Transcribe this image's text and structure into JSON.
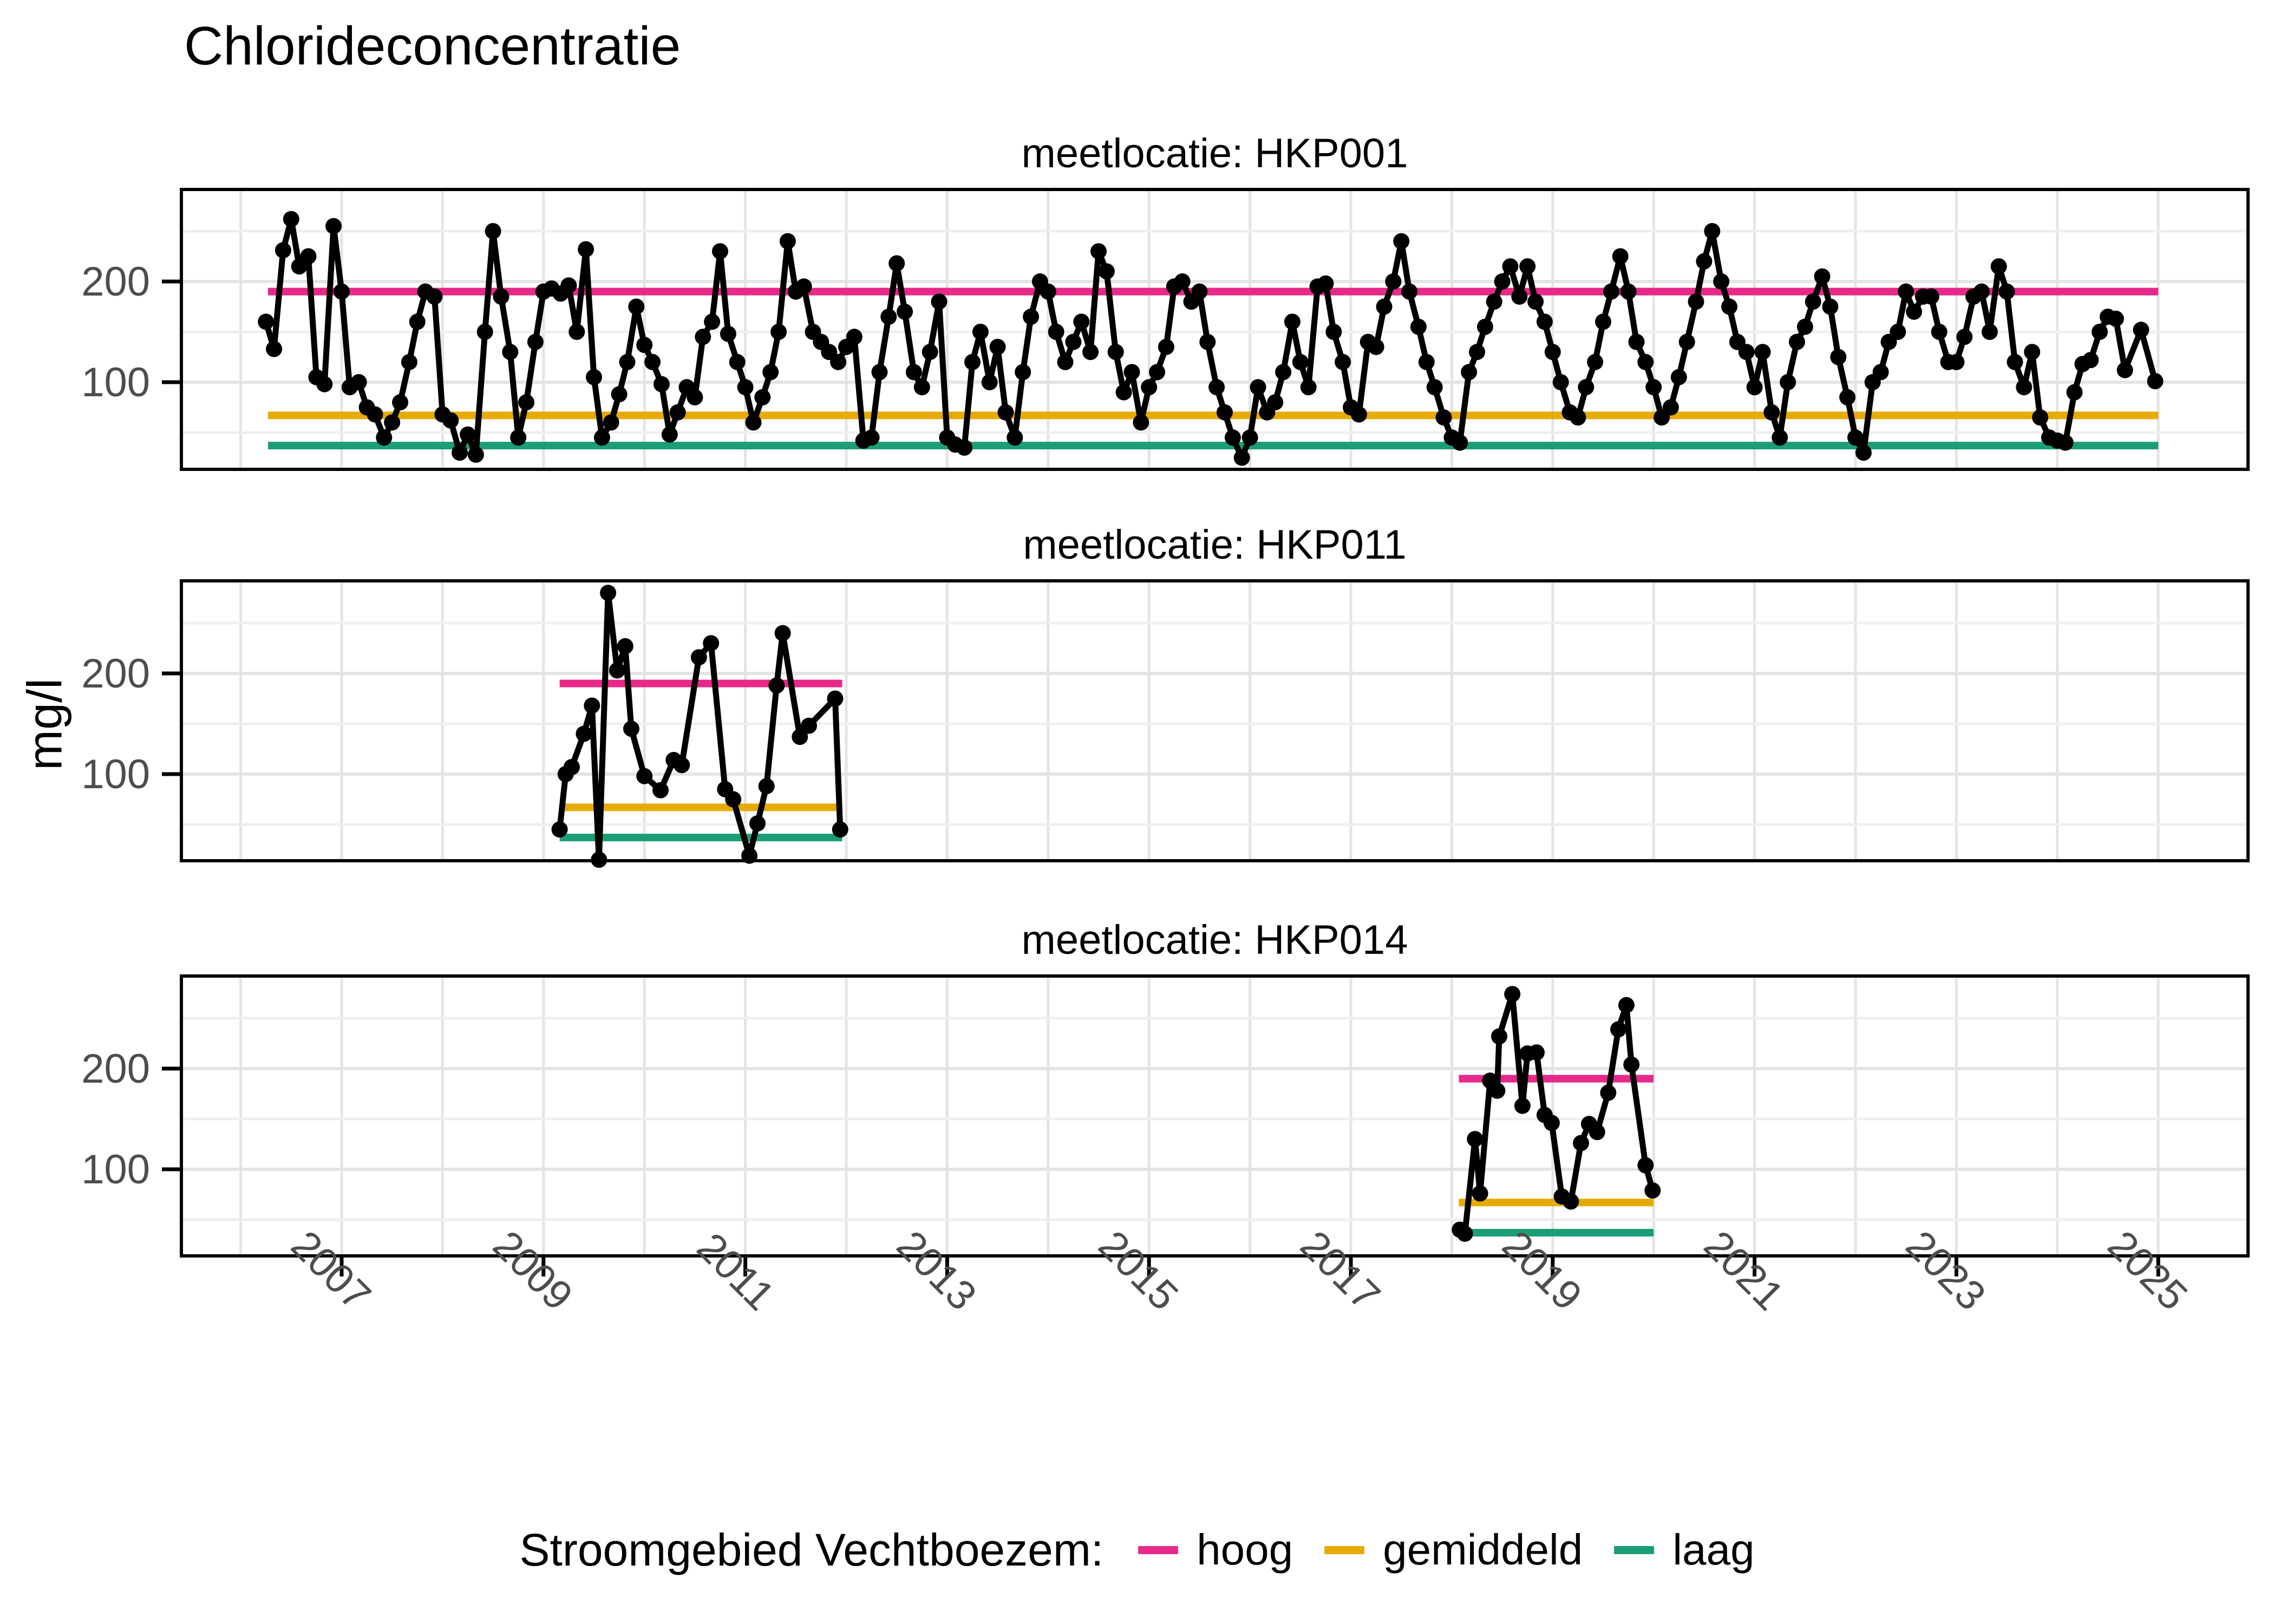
{
  "title": "Chlorideconcentratie",
  "y_axis_label": "mg/l",
  "legend": {
    "title": "Stroomgebied Vechtboezem:",
    "items": [
      {
        "label": "hoog",
        "color": "#E7298A"
      },
      {
        "label": "gemiddeld",
        "color": "#E6AB02"
      },
      {
        "label": "laag",
        "color": "#1B9E77"
      }
    ]
  },
  "colors": {
    "series": "#000000",
    "panel_border": "#000000",
    "grid_major": "#E4E4E4",
    "grid_minor": "#EFEFEF",
    "axis_text": "#4D4D4D",
    "tick_mark": "#000000"
  },
  "axis": {
    "x_tick_years": [
      2007,
      2009,
      2011,
      2013,
      2015,
      2017,
      2019,
      2021,
      2023,
      2025
    ],
    "x_grid_years": [
      2006,
      2007,
      2008,
      2009,
      2010,
      2011,
      2012,
      2013,
      2014,
      2015,
      2016,
      2017,
      2018,
      2019,
      2020,
      2021,
      2022,
      2023,
      2024,
      2025
    ],
    "y_ticks": [
      100,
      200
    ],
    "y_minor": [
      50,
      150,
      250
    ],
    "y_domain": [
      14,
      291
    ],
    "x_domain": [
      2005.41,
      2025.89
    ]
  },
  "chart_data": [
    {
      "type": "line",
      "facet_label": "meetlocatie: HKP001",
      "xlabel": "",
      "ylabel": "mg/l",
      "ref_lines": {
        "hoog": 190,
        "gemiddeld": 67,
        "laag": 37
      },
      "ref_extent": [
        2006.27,
        2025.0
      ],
      "points": [
        [
          2006.25,
          160
        ],
        [
          2006.33,
          133
        ],
        [
          2006.42,
          231
        ],
        [
          2006.5,
          262
        ],
        [
          2006.58,
          215
        ],
        [
          2006.67,
          225
        ],
        [
          2006.75,
          105
        ],
        [
          2006.83,
          98
        ],
        [
          2006.92,
          255
        ],
        [
          2007.0,
          190
        ],
        [
          2007.08,
          95
        ],
        [
          2007.17,
          100
        ],
        [
          2007.25,
          75
        ],
        [
          2007.33,
          68
        ],
        [
          2007.42,
          45
        ],
        [
          2007.5,
          60
        ],
        [
          2007.58,
          80
        ],
        [
          2007.67,
          120
        ],
        [
          2007.75,
          160
        ],
        [
          2007.83,
          190
        ],
        [
          2007.92,
          185
        ],
        [
          2008.0,
          68
        ],
        [
          2008.08,
          62
        ],
        [
          2008.17,
          30
        ],
        [
          2008.25,
          48
        ],
        [
          2008.33,
          28
        ],
        [
          2008.42,
          150
        ],
        [
          2008.5,
          250
        ],
        [
          2008.58,
          185
        ],
        [
          2008.67,
          130
        ],
        [
          2008.75,
          45
        ],
        [
          2008.83,
          80
        ],
        [
          2008.92,
          140
        ],
        [
          2009.0,
          190
        ],
        [
          2009.08,
          193
        ],
        [
          2009.17,
          188
        ],
        [
          2009.25,
          196
        ],
        [
          2009.33,
          150
        ],
        [
          2009.42,
          232
        ],
        [
          2009.5,
          105
        ],
        [
          2009.58,
          45
        ],
        [
          2009.67,
          60
        ],
        [
          2009.75,
          88
        ],
        [
          2009.83,
          120
        ],
        [
          2009.92,
          175
        ],
        [
          2010.0,
          137
        ],
        [
          2010.08,
          120
        ],
        [
          2010.17,
          98
        ],
        [
          2010.25,
          48
        ],
        [
          2010.33,
          70
        ],
        [
          2010.42,
          95
        ],
        [
          2010.5,
          85
        ],
        [
          2010.58,
          145
        ],
        [
          2010.67,
          160
        ],
        [
          2010.75,
          230
        ],
        [
          2010.83,
          148
        ],
        [
          2010.92,
          120
        ],
        [
          2011.0,
          95
        ],
        [
          2011.08,
          60
        ],
        [
          2011.17,
          85
        ],
        [
          2011.25,
          110
        ],
        [
          2011.33,
          150
        ],
        [
          2011.42,
          240
        ],
        [
          2011.5,
          190
        ],
        [
          2011.58,
          195
        ],
        [
          2011.67,
          150
        ],
        [
          2011.75,
          140
        ],
        [
          2011.83,
          130
        ],
        [
          2011.92,
          120
        ],
        [
          2012.0,
          135
        ],
        [
          2012.08,
          145
        ],
        [
          2012.17,
          42
        ],
        [
          2012.25,
          45
        ],
        [
          2012.33,
          110
        ],
        [
          2012.42,
          165
        ],
        [
          2012.5,
          218
        ],
        [
          2012.58,
          170
        ],
        [
          2012.67,
          110
        ],
        [
          2012.75,
          95
        ],
        [
          2012.83,
          130
        ],
        [
          2012.92,
          180
        ],
        [
          2013.0,
          45
        ],
        [
          2013.08,
          38
        ],
        [
          2013.17,
          35
        ],
        [
          2013.25,
          120
        ],
        [
          2013.33,
          150
        ],
        [
          2013.42,
          100
        ],
        [
          2013.5,
          135
        ],
        [
          2013.58,
          70
        ],
        [
          2013.67,
          45
        ],
        [
          2013.75,
          110
        ],
        [
          2013.83,
          165
        ],
        [
          2013.92,
          200
        ],
        [
          2014.0,
          190
        ],
        [
          2014.08,
          150
        ],
        [
          2014.17,
          120
        ],
        [
          2014.25,
          140
        ],
        [
          2014.33,
          160
        ],
        [
          2014.42,
          130
        ],
        [
          2014.5,
          230
        ],
        [
          2014.58,
          210
        ],
        [
          2014.67,
          130
        ],
        [
          2014.75,
          90
        ],
        [
          2014.83,
          110
        ],
        [
          2014.92,
          60
        ],
        [
          2015.0,
          95
        ],
        [
          2015.08,
          110
        ],
        [
          2015.17,
          135
        ],
        [
          2015.25,
          195
        ],
        [
          2015.33,
          200
        ],
        [
          2015.42,
          180
        ],
        [
          2015.5,
          190
        ],
        [
          2015.58,
          140
        ],
        [
          2015.67,
          95
        ],
        [
          2015.75,
          70
        ],
        [
          2015.83,
          45
        ],
        [
          2015.92,
          25
        ],
        [
          2016.0,
          45
        ],
        [
          2016.08,
          95
        ],
        [
          2016.17,
          70
        ],
        [
          2016.25,
          80
        ],
        [
          2016.33,
          110
        ],
        [
          2016.42,
          160
        ],
        [
          2016.5,
          120
        ],
        [
          2016.58,
          95
        ],
        [
          2016.67,
          195
        ],
        [
          2016.75,
          198
        ],
        [
          2016.83,
          150
        ],
        [
          2016.92,
          120
        ],
        [
          2017.0,
          75
        ],
        [
          2017.08,
          68
        ],
        [
          2017.17,
          140
        ],
        [
          2017.25,
          135
        ],
        [
          2017.33,
          175
        ],
        [
          2017.42,
          200
        ],
        [
          2017.5,
          240
        ],
        [
          2017.58,
          190
        ],
        [
          2017.67,
          155
        ],
        [
          2017.75,
          120
        ],
        [
          2017.83,
          95
        ],
        [
          2017.92,
          65
        ],
        [
          2018.0,
          45
        ],
        [
          2018.08,
          40
        ],
        [
          2018.17,
          110
        ],
        [
          2018.25,
          130
        ],
        [
          2018.33,
          155
        ],
        [
          2018.42,
          180
        ],
        [
          2018.5,
          200
        ],
        [
          2018.58,
          215
        ],
        [
          2018.67,
          185
        ],
        [
          2018.75,
          215
        ],
        [
          2018.83,
          180
        ],
        [
          2018.92,
          160
        ],
        [
          2019.0,
          130
        ],
        [
          2019.08,
          100
        ],
        [
          2019.17,
          70
        ],
        [
          2019.25,
          65
        ],
        [
          2019.33,
          95
        ],
        [
          2019.42,
          120
        ],
        [
          2019.5,
          160
        ],
        [
          2019.58,
          190
        ],
        [
          2019.67,
          225
        ],
        [
          2019.75,
          190
        ],
        [
          2019.83,
          140
        ],
        [
          2019.92,
          120
        ],
        [
          2020.0,
          95
        ],
        [
          2020.08,
          65
        ],
        [
          2020.17,
          75
        ],
        [
          2020.25,
          105
        ],
        [
          2020.33,
          140
        ],
        [
          2020.42,
          180
        ],
        [
          2020.5,
          220
        ],
        [
          2020.58,
          250
        ],
        [
          2020.67,
          200
        ],
        [
          2020.75,
          175
        ],
        [
          2020.83,
          140
        ],
        [
          2020.92,
          130
        ],
        [
          2021.0,
          95
        ],
        [
          2021.08,
          130
        ],
        [
          2021.17,
          70
        ],
        [
          2021.25,
          45
        ],
        [
          2021.33,
          100
        ],
        [
          2021.42,
          140
        ],
        [
          2021.5,
          155
        ],
        [
          2021.58,
          180
        ],
        [
          2021.67,
          205
        ],
        [
          2021.75,
          175
        ],
        [
          2021.83,
          125
        ],
        [
          2021.92,
          85
        ],
        [
          2022.0,
          45
        ],
        [
          2022.08,
          30
        ],
        [
          2022.17,
          100
        ],
        [
          2022.25,
          110
        ],
        [
          2022.33,
          140
        ],
        [
          2022.42,
          150
        ],
        [
          2022.5,
          190
        ],
        [
          2022.58,
          170
        ],
        [
          2022.67,
          185
        ],
        [
          2022.75,
          185
        ],
        [
          2022.83,
          150
        ],
        [
          2022.92,
          120
        ],
        [
          2023.0,
          120
        ],
        [
          2023.08,
          145
        ],
        [
          2023.17,
          185
        ],
        [
          2023.25,
          190
        ],
        [
          2023.33,
          150
        ],
        [
          2023.42,
          215
        ],
        [
          2023.5,
          190
        ],
        [
          2023.58,
          120
        ],
        [
          2023.67,
          95
        ],
        [
          2023.75,
          130
        ],
        [
          2023.83,
          65
        ],
        [
          2023.92,
          45
        ],
        [
          2024.0,
          42
        ],
        [
          2024.08,
          40
        ],
        [
          2024.17,
          90
        ],
        [
          2024.25,
          118
        ],
        [
          2024.33,
          122
        ],
        [
          2024.42,
          150
        ],
        [
          2024.5,
          165
        ],
        [
          2024.58,
          163
        ],
        [
          2024.67,
          112
        ],
        [
          2024.83,
          152
        ],
        [
          2024.97,
          101
        ]
      ]
    },
    {
      "type": "line",
      "facet_label": "meetlocatie: HKP011",
      "xlabel": "",
      "ylabel": "mg/l",
      "ref_lines": {
        "hoog": 190,
        "gemiddeld": 67,
        "laag": 37
      },
      "ref_extent": [
        2009.16,
        2011.96
      ],
      "points": [
        [
          2009.16,
          45
        ],
        [
          2009.22,
          100
        ],
        [
          2009.28,
          107
        ],
        [
          2009.4,
          140
        ],
        [
          2009.48,
          168
        ],
        [
          2009.55,
          15
        ],
        [
          2009.64,
          280
        ],
        [
          2009.73,
          203
        ],
        [
          2009.81,
          227
        ],
        [
          2009.87,
          145
        ],
        [
          2010.0,
          98
        ],
        [
          2010.16,
          84
        ],
        [
          2010.29,
          114
        ],
        [
          2010.37,
          109
        ],
        [
          2010.54,
          216
        ],
        [
          2010.66,
          230
        ],
        [
          2010.8,
          85
        ],
        [
          2010.88,
          75
        ],
        [
          2011.04,
          19
        ],
        [
          2011.12,
          51
        ],
        [
          2011.21,
          88
        ],
        [
          2011.31,
          188
        ],
        [
          2011.37,
          240
        ],
        [
          2011.54,
          137
        ],
        [
          2011.63,
          148
        ],
        [
          2011.89,
          175
        ],
        [
          2011.94,
          45
        ]
      ]
    },
    {
      "type": "line",
      "facet_label": "meetlocatie: HKP014",
      "xlabel": "",
      "ylabel": "mg/l",
      "ref_lines": {
        "hoog": 190,
        "gemiddeld": 67,
        "laag": 37
      },
      "ref_extent": [
        2018.07,
        2020.0
      ],
      "points": [
        [
          2018.08,
          40
        ],
        [
          2018.13,
          36
        ],
        [
          2018.23,
          130
        ],
        [
          2018.28,
          76
        ],
        [
          2018.38,
          188
        ],
        [
          2018.45,
          178
        ],
        [
          2018.47,
          232
        ],
        [
          2018.6,
          274
        ],
        [
          2018.7,
          163
        ],
        [
          2018.75,
          215
        ],
        [
          2018.84,
          216
        ],
        [
          2018.92,
          154
        ],
        [
          2018.99,
          146
        ],
        [
          2019.09,
          73
        ],
        [
          2019.18,
          68
        ],
        [
          2019.28,
          126
        ],
        [
          2019.36,
          145
        ],
        [
          2019.44,
          137
        ],
        [
          2019.55,
          176
        ],
        [
          2019.65,
          239
        ],
        [
          2019.73,
          263
        ],
        [
          2019.78,
          204
        ],
        [
          2019.92,
          104
        ],
        [
          2019.99,
          79
        ]
      ]
    }
  ]
}
